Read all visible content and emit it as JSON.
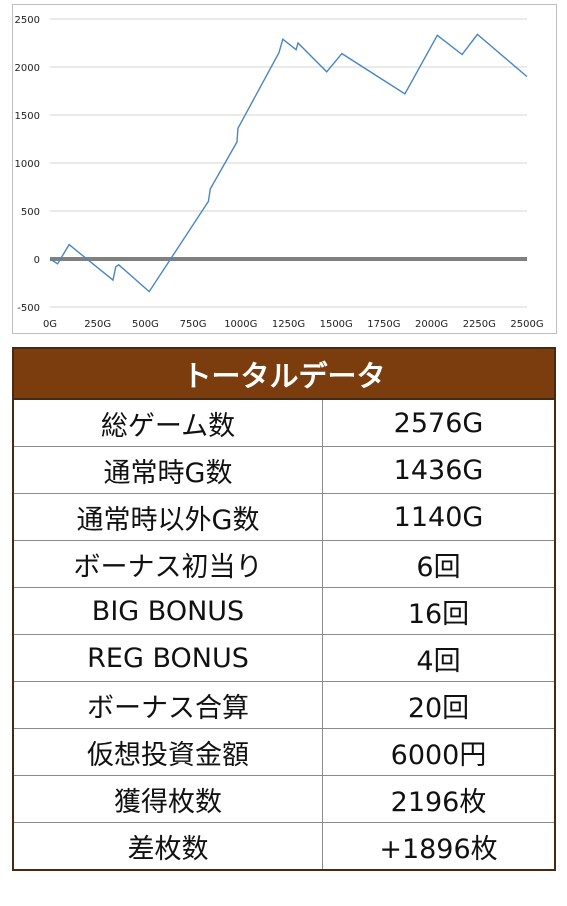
{
  "chart_data": {
    "type": "line",
    "x_ticks": [
      "0G",
      "250G",
      "500G",
      "750G",
      "1000G",
      "1250G",
      "1500G",
      "1750G",
      "2000G",
      "2250G",
      "2500G"
    ],
    "y_ticks": [
      "2500",
      "2000",
      "1500",
      "1000",
      "500",
      "0",
      "-500"
    ],
    "xlim": [
      0,
      2500
    ],
    "ylim": [
      -500,
      2500
    ],
    "series": [
      {
        "color": "#4a86c5",
        "x": [
          0,
          40,
          100,
          330,
          345,
          360,
          520,
          830,
          840,
          980,
          985,
          1200,
          1220,
          1290,
          1300,
          1450,
          1530,
          1860,
          2030,
          2160,
          2240,
          2500
        ],
        "y": [
          0,
          -50,
          150,
          -220,
          -80,
          -60,
          -340,
          600,
          730,
          1220,
          1360,
          2150,
          2290,
          2180,
          2250,
          1950,
          2140,
          1720,
          2330,
          2130,
          2340,
          1900
        ]
      }
    ],
    "zero_line": {
      "value": 0,
      "color": "#808080"
    },
    "grid": true
  },
  "table": {
    "title": "トータルデータ",
    "rows": [
      {
        "label": "総ゲーム数",
        "value": "2576G"
      },
      {
        "label": "通常時G数",
        "value": "1436G"
      },
      {
        "label": "通常時以外G数",
        "value": "1140G"
      },
      {
        "label": "ボーナス初当り",
        "value": "6回"
      },
      {
        "label": "BIG BONUS",
        "value": "16回"
      },
      {
        "label": "REG BONUS",
        "value": "4回"
      },
      {
        "label": "ボーナス合算",
        "value": "20回"
      },
      {
        "label": "仮想投資金額",
        "value": "6000円"
      },
      {
        "label": "獲得枚数",
        "value": "2196枚"
      },
      {
        "label": "差枚数",
        "value": "+1896枚"
      }
    ]
  }
}
